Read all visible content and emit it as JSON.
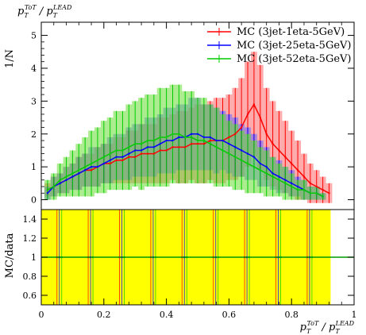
{
  "chart_data": [
    {
      "type": "line",
      "title": "p_T^{ToT} / p_T^{LEAD}",
      "title_parts": {
        "base1": "p",
        "sub1": "T",
        "sup1": "ToT",
        "sep": " / ",
        "base2": "p",
        "sub2": "T",
        "sup2": "LEAD"
      },
      "ylabel": "1/N",
      "xlim": [
        0,
        1
      ],
      "ylim": [
        -0.3,
        5.4
      ],
      "yticks": [
        0,
        1,
        2,
        3,
        4,
        5
      ],
      "ytick_labels": [
        "0",
        "1",
        "2",
        "3",
        "4",
        "5"
      ],
      "grid": false,
      "legend_position": "top-right",
      "series": [
        {
          "name": "MC (3jet-1eta-5GeV)",
          "color": "#ff0000",
          "band_color": "#ff6666",
          "x": [
            0.02,
            0.04,
            0.06,
            0.08,
            0.1,
            0.12,
            0.14,
            0.16,
            0.18,
            0.2,
            0.22,
            0.24,
            0.26,
            0.28,
            0.3,
            0.32,
            0.34,
            0.36,
            0.38,
            0.4,
            0.42,
            0.44,
            0.46,
            0.48,
            0.5,
            0.52,
            0.54,
            0.56,
            0.58,
            0.6,
            0.62,
            0.64,
            0.66,
            0.68,
            0.7,
            0.72,
            0.74,
            0.76,
            0.78,
            0.8,
            0.82,
            0.84,
            0.86,
            0.88,
            0.9,
            0.92
          ],
          "values": [
            0.3,
            0.4,
            0.5,
            0.6,
            0.7,
            0.8,
            0.9,
            0.9,
            1.0,
            1.1,
            1.1,
            1.2,
            1.2,
            1.3,
            1.3,
            1.4,
            1.4,
            1.4,
            1.5,
            1.5,
            1.6,
            1.6,
            1.6,
            1.7,
            1.7,
            1.7,
            1.8,
            1.8,
            1.8,
            1.9,
            2.0,
            2.2,
            2.6,
            2.9,
            2.5,
            2.0,
            1.7,
            1.5,
            1.3,
            1.1,
            0.9,
            0.7,
            0.5,
            0.4,
            0.3,
            0.2
          ],
          "errors": [
            0.2,
            0.3,
            0.3,
            0.4,
            0.4,
            0.5,
            0.5,
            0.5,
            0.6,
            0.6,
            0.6,
            0.7,
            0.7,
            0.8,
            0.8,
            0.9,
            0.9,
            0.9,
            1.0,
            1.0,
            1.0,
            1.1,
            1.1,
            1.1,
            1.2,
            1.2,
            1.2,
            1.3,
            1.3,
            1.3,
            1.4,
            1.5,
            1.6,
            1.6,
            1.6,
            1.4,
            1.3,
            1.2,
            1.1,
            1.0,
            0.9,
            0.7,
            0.6,
            0.5,
            0.4,
            0.3
          ]
        },
        {
          "name": "MC (3jet-25eta-5GeV)",
          "color": "#0000ff",
          "band_color": "#6666ff",
          "x": [
            0.02,
            0.04,
            0.06,
            0.08,
            0.1,
            0.12,
            0.14,
            0.16,
            0.18,
            0.2,
            0.22,
            0.24,
            0.26,
            0.28,
            0.3,
            0.32,
            0.34,
            0.36,
            0.38,
            0.4,
            0.42,
            0.44,
            0.46,
            0.48,
            0.5,
            0.52,
            0.54,
            0.56,
            0.58,
            0.6,
            0.62,
            0.64,
            0.66,
            0.68,
            0.7,
            0.72,
            0.74,
            0.76,
            0.78,
            0.8,
            0.82,
            0.84,
            0.86,
            0.88,
            0.9
          ],
          "values": [
            0.2,
            0.4,
            0.5,
            0.6,
            0.7,
            0.8,
            0.9,
            1.0,
            1.0,
            1.1,
            1.2,
            1.3,
            1.3,
            1.4,
            1.5,
            1.5,
            1.6,
            1.6,
            1.7,
            1.8,
            1.8,
            1.9,
            1.9,
            2.0,
            2.0,
            1.9,
            1.9,
            1.8,
            1.8,
            1.7,
            1.6,
            1.5,
            1.4,
            1.3,
            1.1,
            1.0,
            0.8,
            0.7,
            0.6,
            0.5,
            0.4,
            0.3,
            0.2,
            0.2,
            0.1
          ],
          "errors": [
            0.2,
            0.3,
            0.3,
            0.4,
            0.4,
            0.5,
            0.5,
            0.6,
            0.6,
            0.6,
            0.7,
            0.7,
            0.7,
            0.8,
            0.8,
            0.8,
            0.9,
            0.9,
            0.9,
            1.0,
            1.0,
            1.0,
            1.0,
            1.1,
            1.1,
            1.0,
            1.0,
            1.0,
            0.9,
            0.9,
            0.9,
            0.8,
            0.8,
            0.7,
            0.7,
            0.6,
            0.5,
            0.5,
            0.4,
            0.4,
            0.3,
            0.3,
            0.2,
            0.2,
            0.1
          ]
        },
        {
          "name": "MC (3jet-52eta-5GeV)",
          "color": "#00cc00",
          "band_color": "#66dd33",
          "x": [
            0.02,
            0.04,
            0.06,
            0.08,
            0.1,
            0.12,
            0.14,
            0.16,
            0.18,
            0.2,
            0.22,
            0.24,
            0.26,
            0.28,
            0.3,
            0.32,
            0.34,
            0.36,
            0.38,
            0.4,
            0.42,
            0.44,
            0.46,
            0.48,
            0.5,
            0.52,
            0.54,
            0.56,
            0.58,
            0.6,
            0.62,
            0.64,
            0.66,
            0.68,
            0.7,
            0.72,
            0.74,
            0.76,
            0.78,
            0.8,
            0.82,
            0.84,
            0.86,
            0.88,
            0.9
          ],
          "values": [
            0.3,
            0.4,
            0.6,
            0.7,
            0.8,
            0.9,
            1.0,
            1.1,
            1.2,
            1.3,
            1.4,
            1.5,
            1.5,
            1.6,
            1.7,
            1.7,
            1.8,
            1.8,
            1.9,
            1.9,
            2.0,
            2.0,
            1.9,
            1.9,
            1.8,
            1.8,
            1.7,
            1.6,
            1.5,
            1.4,
            1.3,
            1.2,
            1.1,
            1.0,
            0.9,
            0.8,
            0.7,
            0.6,
            0.5,
            0.4,
            0.3,
            0.3,
            0.2,
            0.2,
            0.1
          ],
          "errors": [
            0.3,
            0.4,
            0.5,
            0.6,
            0.7,
            0.8,
            0.9,
            1.0,
            1.0,
            1.1,
            1.1,
            1.2,
            1.2,
            1.3,
            1.3,
            1.4,
            1.4,
            1.4,
            1.5,
            1.5,
            1.5,
            1.5,
            1.4,
            1.4,
            1.3,
            1.3,
            1.2,
            1.2,
            1.1,
            1.0,
            1.0,
            0.9,
            0.9,
            0.8,
            0.7,
            0.7,
            0.6,
            0.5,
            0.5,
            0.4,
            0.3,
            0.3,
            0.2,
            0.2,
            0.1
          ]
        }
      ]
    },
    {
      "type": "line",
      "ylabel": "MC/data",
      "xlabel": "p_T^{ToT} / p_T^{LEAD}",
      "xlabel_parts": {
        "base1": "p",
        "sub1": "T",
        "sup1": "ToT",
        "sep": " / ",
        "base2": "p",
        "sub2": "T",
        "sup2": "LEAD"
      },
      "xlim": [
        0,
        1
      ],
      "ylim": [
        0.5,
        1.5
      ],
      "xticks": [
        0,
        0.2,
        0.4,
        0.6,
        0.8,
        1
      ],
      "xtick_labels": [
        "0",
        "0.2",
        "0.4",
        "0.6",
        "0.8",
        "1"
      ],
      "yticks": [
        0.6,
        0.8,
        1.0,
        1.2,
        1.4
      ],
      "ytick_labels": [
        "0.6",
        "0.8",
        "1",
        "1.2",
        "1.4"
      ],
      "reference_line": 1.0,
      "reference_color": "#009900",
      "band_color": "#ffff00",
      "band_range": [
        0.0,
        0.925
      ],
      "grid": false,
      "ratio_series": [
        {
          "name": "MC (3jet-1eta-5GeV)",
          "color": "#ff0000",
          "x": [
            0.05,
            0.15,
            0.25,
            0.35,
            0.45,
            0.55,
            0.65,
            0.75,
            0.85
          ],
          "values": [
            1.0,
            1.0,
            1.0,
            1.0,
            1.0,
            1.0,
            1.0,
            1.0,
            1.0
          ]
        },
        {
          "name": "MC (3jet-25eta-5GeV)",
          "color": "#0000ff",
          "x": [
            0.05,
            0.15,
            0.25,
            0.35,
            0.45,
            0.55,
            0.65,
            0.75,
            0.85
          ],
          "values": [
            1.0,
            1.0,
            1.0,
            1.0,
            1.0,
            1.0,
            1.0,
            1.0,
            1.0
          ]
        },
        {
          "name": "MC (3jet-52eta-5GeV)",
          "color": "#00cc00",
          "x": [
            0.05,
            0.15,
            0.25,
            0.35,
            0.45,
            0.55,
            0.65,
            0.75,
            0.85
          ],
          "values": [
            1.0,
            1.0,
            1.0,
            1.0,
            1.0,
            1.0,
            1.0,
            1.0,
            1.0
          ]
        }
      ]
    }
  ]
}
